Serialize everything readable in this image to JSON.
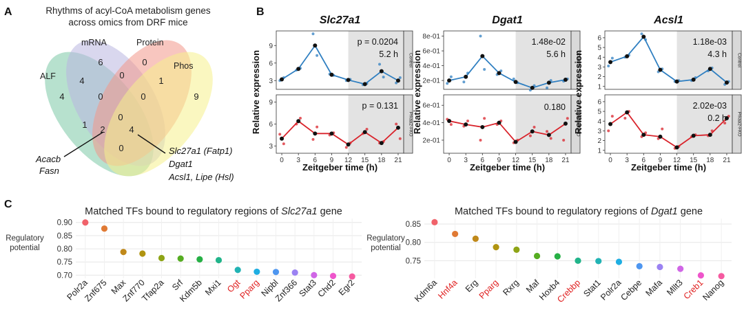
{
  "panel_letters": {
    "a": "A",
    "b": "B",
    "c": "C"
  },
  "venn": {
    "title_line1": "Rhythms of acyl-CoA metabolism genes",
    "title_line2": "across omics from DRF mice",
    "sets": [
      {
        "name": "ALF",
        "color": "#7cc9a6"
      },
      {
        "name": "mRNA",
        "color": "#b9b6e0"
      },
      {
        "name": "Protein",
        "color": "#f3978a"
      },
      {
        "name": "Phos",
        "color": "#f5f08c"
      }
    ],
    "counts": [
      "4",
      "6",
      "0",
      "9",
      "4",
      "0",
      "0",
      "0",
      "1",
      "0",
      "2",
      "4",
      "1",
      "0"
    ],
    "note_left": [
      "Acacb",
      "Fasn"
    ],
    "note_right": [
      "Slc27a1 (Fatp1)",
      "Dgat1",
      "Acsl1, Lipe (Hsl)"
    ]
  },
  "time_series": {
    "ylabel": "Relative expression",
    "xlabel": "Zeitgeber time (h)",
    "x": [
      0,
      3,
      6,
      9,
      12,
      15,
      18,
      21
    ],
    "x_tick_labels": [
      "0",
      "3",
      "6",
      "9",
      "12",
      "15",
      "18",
      "21"
    ],
    "strip_labels": [
      "Control",
      "Prkaa2-FKO"
    ],
    "colors": {
      "control": "#2f7fc1",
      "ko": "#d9232b",
      "mean_point": "#111111",
      "dark_phase": "#e3e3e3"
    },
    "genes": [
      {
        "name": "Slc27a1",
        "control": {
          "yticks": [
            "3",
            "6",
            "9"
          ],
          "ylim": [
            1.5,
            11.5
          ],
          "tick_values": [
            3,
            6,
            9
          ],
          "mean": [
            3.2,
            5.0,
            9.0,
            4.0,
            3.1,
            2.4,
            4.6,
            3.0
          ],
          "reps": [
            [
              3.0,
              3.5
            ],
            [
              4.8,
              5.1
            ],
            [
              11.0,
              7.3
            ],
            [
              4.1,
              3.9
            ],
            [
              3.0,
              3.2
            ],
            [
              2.3,
              2.5
            ],
            [
              5.8,
              3.6
            ],
            [
              2.6,
              3.5
            ]
          ],
          "stats": [
            "p = 0.0204",
            "5.2 h"
          ]
        },
        "ko": {
          "yticks": [
            "3",
            "6",
            "9"
          ],
          "ylim": [
            2.0,
            10.0
          ],
          "tick_values": [
            3,
            6,
            9
          ],
          "mean": [
            4.0,
            6.4,
            4.7,
            4.7,
            3.2,
            4.9,
            3.4,
            5.5
          ],
          "reps": [
            [
              4.6,
              3.3
            ],
            [
              6.0,
              6.8
            ],
            [
              3.9,
              5.6
            ],
            [
              4.5,
              4.8
            ],
            [
              2.8,
              3.4
            ],
            [
              4.7,
              5.3
            ],
            [
              3.4,
              3.6
            ],
            [
              6.0,
              4.0
            ]
          ],
          "stats": [
            "p = 0.131",
            ""
          ]
        }
      },
      {
        "name": "Dgat1",
        "control": {
          "yticks": [
            "2e-01",
            "4e-01",
            "6e-01",
            "8e-01"
          ],
          "ylim": [
            0.08,
            0.87
          ],
          "tick_values": [
            0.2,
            0.4,
            0.6,
            0.8
          ],
          "mean": [
            0.2,
            0.25,
            0.53,
            0.3,
            0.18,
            0.1,
            0.17,
            0.21
          ],
          "reps": [
            [
              0.16,
              0.25
            ],
            [
              0.18,
              0.3
            ],
            [
              0.8,
              0.35
            ],
            [
              0.28,
              0.33
            ],
            [
              0.22,
              0.17
            ],
            [
              0.07,
              0.13
            ],
            [
              0.1,
              0.2
            ],
            [
              0.19,
              0.22
            ]
          ],
          "stats": [
            "1.48e-02",
            "5.6 h"
          ]
        },
        "ko": {
          "yticks": [
            "2e-01",
            "4e-01",
            "6e-01"
          ],
          "ylim": [
            0.05,
            0.72
          ],
          "tick_values": [
            0.2,
            0.4,
            0.6
          ],
          "mean": [
            0.42,
            0.38,
            0.35,
            0.4,
            0.18,
            0.3,
            0.26,
            0.39
          ],
          "reps": [
            [
              0.44,
              0.38
            ],
            [
              0.36,
              0.42
            ],
            [
              0.2,
              0.45
            ],
            [
              0.38,
              0.42
            ],
            [
              0.17,
              0.2
            ],
            [
              0.25,
              0.35
            ],
            [
              0.3,
              0.22
            ],
            [
              0.2,
              0.45
            ]
          ],
          "stats": [
            "",
            "0.180"
          ]
        }
      },
      {
        "name": "Acsl1",
        "control": {
          "yticks": [
            "1",
            "2",
            "3",
            "4",
            "5",
            "6"
          ],
          "ylim": [
            0.7,
            6.7
          ],
          "tick_values": [
            1,
            2,
            3,
            4,
            5,
            6
          ],
          "mean": [
            3.5,
            4.1,
            6.1,
            2.7,
            1.5,
            1.7,
            2.8,
            1.4
          ],
          "reps": [
            [
              3.1,
              3.9
            ],
            [
              4.0,
              4.2
            ],
            [
              6.4,
              5.8
            ],
            [
              2.5,
              2.8
            ],
            [
              1.5,
              1.6
            ],
            [
              1.6,
              1.9
            ],
            [
              2.6,
              2.9
            ],
            [
              1.2,
              1.5
            ]
          ],
          "stats": [
            "1.18e-03",
            "4.3 h"
          ]
        },
        "ko": {
          "yticks": [
            "1",
            "2",
            "3",
            "4",
            "5",
            "6"
          ],
          "ylim": [
            0.7,
            6.7
          ],
          "tick_values": [
            1,
            2,
            3,
            4,
            5,
            6
          ],
          "mean": [
            3.7,
            4.9,
            2.6,
            2.4,
            1.3,
            2.5,
            2.6,
            4.3
          ],
          "reps": [
            [
              3.0,
              4.5
            ],
            [
              4.3,
              5.0
            ],
            [
              2.4,
              2.8
            ],
            [
              2.2,
              3.2
            ],
            [
              1.2,
              1.4
            ],
            [
              2.4,
              2.6
            ],
            [
              2.5,
              3.0
            ],
            [
              3.8,
              4.5
            ]
          ],
          "stats": [
            "2.02e-03",
            "0.2 h"
          ]
        }
      }
    ]
  },
  "chart_data": [
    {
      "type": "scatter",
      "title_prefix": "Matched TFs bound to regulatory regions of",
      "gene": "Slc27a1",
      "title_suffix": "gene",
      "ylabel": "Regulatory potential",
      "categories": [
        "Polr2a",
        "Znf675",
        "Max",
        "Znf770",
        "Tfap2a",
        "Srf",
        "Kdm5b",
        "Mxi1",
        "Ogt",
        "Pparg",
        "Nipbl",
        "Znf366",
        "Stat3",
        "Chd2",
        "Egr2"
      ],
      "values": [
        0.9,
        0.877,
        0.788,
        0.782,
        0.765,
        0.763,
        0.76,
        0.757,
        0.72,
        0.713,
        0.712,
        0.71,
        0.7,
        0.697,
        0.695
      ],
      "highlighted": [
        "Ogt",
        "Pparg"
      ],
      "ylim": [
        0.688,
        0.915
      ],
      "yticks": [
        0.7,
        0.75,
        0.8,
        0.85,
        0.9
      ],
      "ytick_labels": [
        "0.70",
        "0.75",
        "0.80",
        "0.85",
        "0.90"
      ]
    },
    {
      "type": "scatter",
      "title_prefix": "Matched TFs bound to regulatory regions of",
      "gene": "Dgat1",
      "title_suffix": "gene",
      "ylabel": "Regulatory potential",
      "categories": [
        "Kdm6a",
        "Hnf4a",
        "Erg",
        "Pparg",
        "Rxrg",
        "Maf",
        "Hoxb4",
        "Crebbp",
        "Stat1",
        "Polr2a",
        "Cebpe",
        "Mafa",
        "Mllt3",
        "Creb1",
        "Nanog"
      ],
      "values": [
        0.855,
        0.823,
        0.81,
        0.787,
        0.78,
        0.763,
        0.762,
        0.75,
        0.749,
        0.747,
        0.735,
        0.733,
        0.728,
        0.71,
        0.708
      ],
      "highlighted": [
        "Hnf4a",
        "Pparg",
        "Crebbp",
        "Creb1"
      ],
      "ylim": [
        0.702,
        0.865
      ],
      "yticks": [
        0.75,
        0.8,
        0.85
      ],
      "ytick_labels": [
        "0.75",
        "0.80",
        "0.85"
      ]
    }
  ],
  "tf_palette": [
    "#f0626a",
    "#e07a34",
    "#c0891a",
    "#b09410",
    "#8ea416",
    "#56ad22",
    "#26b045",
    "#21b48a",
    "#21b3b4",
    "#1eaee2",
    "#4e96f0",
    "#9b82f2",
    "#d066e6",
    "#ee55cb",
    "#f55aa0"
  ]
}
